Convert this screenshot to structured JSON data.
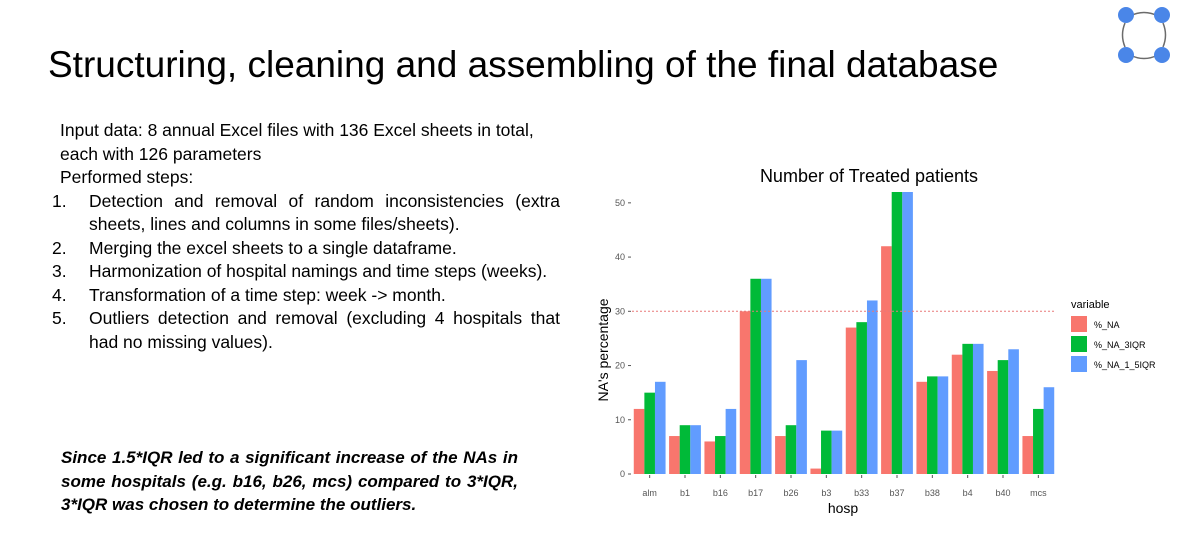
{
  "slide": {
    "title": "Structuring, cleaning and assembling of the final database",
    "input_text": "Input data: 8 annual Excel files with 136 Excel sheets in total, each with 126 parameters",
    "steps_heading": "Performed steps:",
    "steps": [
      {
        "num": "1.",
        "text": "Detection and removal of random inconsistencies (extra sheets, lines and columns in some files/sheets)."
      },
      {
        "num": "2.",
        "text": "Merging the excel sheets to a single dataframe."
      },
      {
        "num": "3.",
        "text": "Harmonization of hospital namings and time steps (weeks)."
      },
      {
        "num": "4.",
        "text": "Transformation of a time step: week -> month."
      },
      {
        "num": "5.",
        "text": "Outliers detection and removal (excluding 4 hospitals that had no missing values)."
      }
    ],
    "note": "Since 1.5*IQR led to a significant increase of the NAs in some hospitals (e.g. b16, b26, mcs) compared to 3*IQR, 3*IQR was chosen to determine the outliers.",
    "logo_icon": "circle-nodes-logo-icon",
    "logo_color": "#4a86e8"
  },
  "chart_data": {
    "type": "bar",
    "title": "Number of Treated patients",
    "xlabel": "hosp",
    "ylabel": "NA's percentage",
    "ylim": [
      0,
      52
    ],
    "yticks": [
      0,
      10,
      20,
      30,
      40,
      50
    ],
    "reference_line": 30,
    "reference_line_color": "#e87878",
    "grid": false,
    "legend_title": "variable",
    "legend_position": "right",
    "categories": [
      "alm",
      "b1",
      "b16",
      "b17",
      "b26",
      "b3",
      "b33",
      "b37",
      "b38",
      "b4",
      "b40",
      "mcs"
    ],
    "series": [
      {
        "name": "%_NA",
        "color": "#f8766d",
        "values": [
          12,
          7,
          6,
          30,
          7,
          1,
          27,
          42,
          17,
          22,
          19,
          7
        ]
      },
      {
        "name": "%_NA_3IQR",
        "color": "#00ba38",
        "values": [
          15,
          9,
          7,
          36,
          9,
          8,
          28,
          52,
          18,
          24,
          21,
          12
        ]
      },
      {
        "name": "%_NA_1_5IQR",
        "color": "#619cff",
        "values": [
          17,
          9,
          12,
          36,
          21,
          8,
          32,
          52,
          18,
          24,
          23,
          16
        ]
      }
    ]
  }
}
